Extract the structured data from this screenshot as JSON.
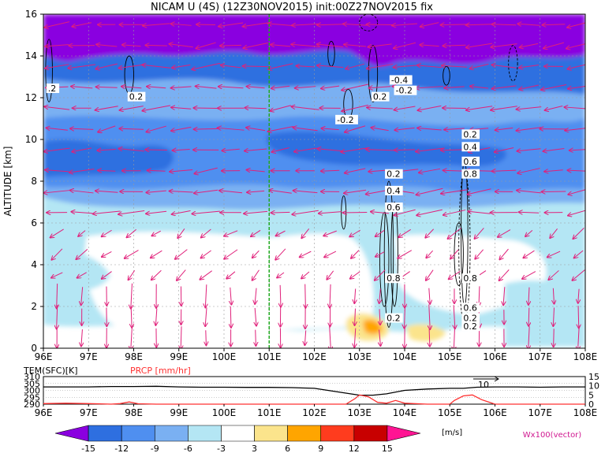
{
  "chart_data": [
    {
      "type": "heatmap",
      "title": "NICAM U (4S) (12Z30NOV2015) init:00Z27NOV2015 fix",
      "ylabel": "ALTITUDE [km]",
      "x_ticks": [
        "96E",
        "97E",
        "98E",
        "99E",
        "100E",
        "101E",
        "102E",
        "103E",
        "104E",
        "105E",
        "106E",
        "107E",
        "108E"
      ],
      "y_ticks": [
        "0",
        "2",
        "4",
        "6",
        "8",
        "10",
        "12",
        "14",
        "16"
      ],
      "xlim": [
        96,
        108
      ],
      "ylim": [
        0,
        16
      ],
      "grid": true,
      "marker_longitude": 101,
      "contour_labels": [
        {
          "lon": 96.1,
          "alt": 12.3,
          "text": ".2"
        },
        {
          "lon": 97.9,
          "alt": 11.9,
          "text": "0.2"
        },
        {
          "lon": 102.5,
          "alt": 10.8,
          "text": "-0.2"
        },
        {
          "lon": 103.3,
          "alt": 11.9,
          "text": "0.2"
        },
        {
          "lon": 103.7,
          "alt": 12.7,
          "text": "-0.4"
        },
        {
          "lon": 103.8,
          "alt": 12.2,
          "text": "-0.2"
        },
        {
          "lon": 103.6,
          "alt": 8.2,
          "text": "0.2"
        },
        {
          "lon": 103.6,
          "alt": 7.4,
          "text": "0.4"
        },
        {
          "lon": 103.6,
          "alt": 6.6,
          "text": "0.6"
        },
        {
          "lon": 103.6,
          "alt": 3.2,
          "text": "0.8"
        },
        {
          "lon": 103.6,
          "alt": 1.3,
          "text": "0.2"
        },
        {
          "lon": 105.3,
          "alt": 10.1,
          "text": "0.2"
        },
        {
          "lon": 105.3,
          "alt": 9.5,
          "text": "0.4"
        },
        {
          "lon": 105.3,
          "alt": 8.8,
          "text": "0.6"
        },
        {
          "lon": 105.3,
          "alt": 8.2,
          "text": "0.8"
        },
        {
          "lon": 105.3,
          "alt": 3.2,
          "text": "0.8"
        },
        {
          "lon": 105.3,
          "alt": 1.8,
          "text": "0.6"
        },
        {
          "lon": 105.3,
          "alt": 1.3,
          "text": "0.2"
        },
        {
          "lon": 105.3,
          "alt": 0.9,
          "text": "0.2"
        }
      ]
    },
    {
      "type": "line",
      "left_axis_label": "TEM(SFC)[K]",
      "right_axis_label": "PRCP [mm/hr]",
      "left_ticks": [
        "310",
        "305",
        "300",
        "295",
        "290"
      ],
      "right_ticks": [
        "15",
        "10",
        "5",
        "0"
      ],
      "left_ylim": [
        290,
        310
      ],
      "right_ylim": [
        0,
        15
      ],
      "x_ticks": [
        "96E",
        "97E",
        "98E",
        "99E",
        "100E",
        "101E",
        "102E",
        "103E",
        "104E",
        "105E",
        "106E",
        "107E",
        "108E"
      ],
      "annotation": "10",
      "series": [
        {
          "color": "#000000",
          "x": [
            96,
            96.5,
            97,
            97.5,
            98,
            98.5,
            99,
            99.5,
            100,
            100.5,
            101,
            101.5,
            102,
            102.3,
            102.6,
            103,
            103.3,
            103.6,
            104,
            104.5,
            105,
            105.3,
            105.6,
            106,
            106.5,
            107,
            107.5,
            108
          ],
          "values": [
            302.5,
            302.5,
            302.5,
            302.8,
            302.8,
            303,
            302.5,
            302.3,
            302.3,
            302.2,
            302.2,
            302,
            301.5,
            300,
            298.5,
            296.5,
            296.5,
            297.5,
            300,
            301,
            301.5,
            301.5,
            302.3,
            302.5,
            302.5,
            302.3,
            302.5,
            302.5
          ]
        },
        {
          "color": "#ff3030",
          "x": [
            96,
            96.5,
            97,
            97.5,
            97.7,
            97.9,
            98.1,
            98.5,
            99,
            100,
            101,
            102,
            102.7,
            102.9,
            103,
            103.2,
            103.4,
            103.6,
            103.8,
            104,
            104.5,
            105,
            105.1,
            105.3,
            105.5,
            105.7,
            106,
            107,
            108
          ],
          "values": [
            0.3,
            0.5,
            0.3,
            0,
            0.3,
            1.2,
            0.2,
            0,
            0,
            0,
            0,
            0,
            0,
            3,
            5,
            4,
            1,
            0.5,
            2,
            0.5,
            0,
            0,
            2,
            4.5,
            5,
            2.5,
            0,
            0,
            0
          ]
        }
      ]
    },
    {
      "type": "colorbar",
      "levels": [
        "-15",
        "-12",
        "-9",
        "-6",
        "-3",
        "3",
        "6",
        "9",
        "12",
        "15"
      ],
      "unit": "[m/s]",
      "colors": [
        "#8a00e0",
        "#2e6fe0",
        "#4f8ff0",
        "#7ab0f2",
        "#b4e6f4",
        "#ffffff",
        "#fbe48c",
        "#ffa500",
        "#ff3c1e",
        "#c80000",
        "#ff1493"
      ],
      "vector_label": "Wx100(vector)"
    }
  ]
}
